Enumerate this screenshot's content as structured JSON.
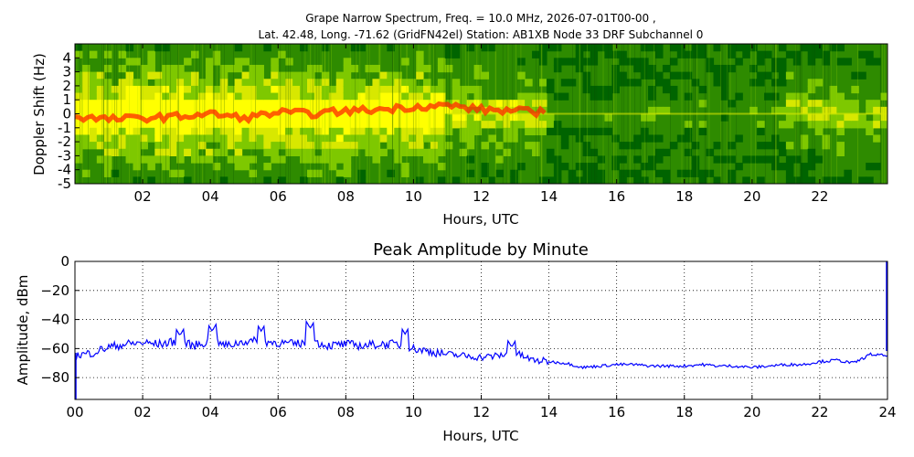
{
  "chart_data": [
    {
      "type": "heatmap",
      "title_line1": "Grape Narrow Spectrum, Freq. = 10.0 MHz, 2026-07-01T00-00 ,",
      "title_line2": "Lat.  42.48, Long. -71.62 (GridFN42el) Station: AB1XB Node 33 DRF Subchannel 0",
      "xlabel": "Hours, UTC",
      "ylabel": "Doppler Shift (Hz)",
      "xlim": [
        0,
        24
      ],
      "ylim": [
        -5,
        5
      ],
      "x_ticks": [
        "02",
        "04",
        "06",
        "08",
        "10",
        "12",
        "14",
        "16",
        "18",
        "20",
        "22"
      ],
      "y_ticks": [
        "4",
        "3",
        "2",
        "1",
        "0",
        "-1",
        "-2",
        "-3",
        "-4",
        "-5"
      ],
      "colors": [
        "#006400",
        "#2e8b00",
        "#7ec800",
        "#d8e800",
        "#ffff00",
        "#ff8c00",
        "#ff3000"
      ],
      "trace_hz": [
        [
          0,
          -0.2
        ],
        [
          1,
          -0.4
        ],
        [
          2,
          -0.3
        ],
        [
          3,
          -0.2
        ],
        [
          4,
          0.0
        ],
        [
          5,
          -0.3
        ],
        [
          6,
          0.1
        ],
        [
          7,
          0.0
        ],
        [
          8,
          0.2
        ],
        [
          9,
          0.3
        ],
        [
          10,
          0.5
        ],
        [
          11,
          0.6
        ],
        [
          12,
          0.3
        ],
        [
          13,
          0.2
        ],
        [
          14,
          0.1
        ]
      ]
    },
    {
      "type": "line",
      "title": "Peak Amplitude by Minute",
      "xlabel": "Hours, UTC",
      "ylabel": "Amplitude, dBm",
      "xlim": [
        0,
        24
      ],
      "ylim": [
        -95,
        0
      ],
      "grid": true,
      "line_color": "#0000ff",
      "x_ticks": [
        "00",
        "02",
        "04",
        "06",
        "08",
        "10",
        "12",
        "14",
        "16",
        "18",
        "20",
        "22",
        "24"
      ],
      "y_ticks": [
        "0",
        "−20",
        "−40",
        "−60",
        "−80"
      ],
      "series": [
        {
          "x": [
            0,
            0.5,
            1,
            1.5,
            2,
            2.5,
            3,
            3.5,
            4,
            4.5,
            5,
            5.5,
            6,
            6.5,
            7,
            7.5,
            8,
            8.5,
            9,
            9.5,
            10,
            10.5,
            11,
            11.5,
            12,
            12.5,
            13,
            13.5,
            14,
            14.5,
            15,
            15.5,
            16,
            16.5,
            17,
            17.5,
            18,
            18.5,
            19,
            19.5,
            20,
            20.5,
            21,
            21.5,
            22,
            22.5,
            23,
            23.5,
            24
          ],
          "values": [
            -65,
            -63,
            -59,
            -57,
            -56,
            -57,
            -55,
            -58,
            -55,
            -58,
            -55,
            -55,
            -56,
            -57,
            -55,
            -58,
            -57,
            -58,
            -57,
            -57,
            -60,
            -62,
            -64,
            -65,
            -66,
            -65,
            -63,
            -68,
            -69,
            -70,
            -73,
            -72,
            -71,
            -71,
            -72,
            -72,
            -72,
            -71,
            -72,
            -72,
            -73,
            -72,
            -71,
            -71,
            -69,
            -68,
            -70,
            -64,
            -65
          ]
        }
      ],
      "peaks": [
        [
          3.1,
          -51
        ],
        [
          4.05,
          -48
        ],
        [
          5.5,
          -48
        ],
        [
          6.95,
          -46
        ],
        [
          9.75,
          -50
        ],
        [
          12.9,
          -59
        ]
      ]
    }
  ]
}
